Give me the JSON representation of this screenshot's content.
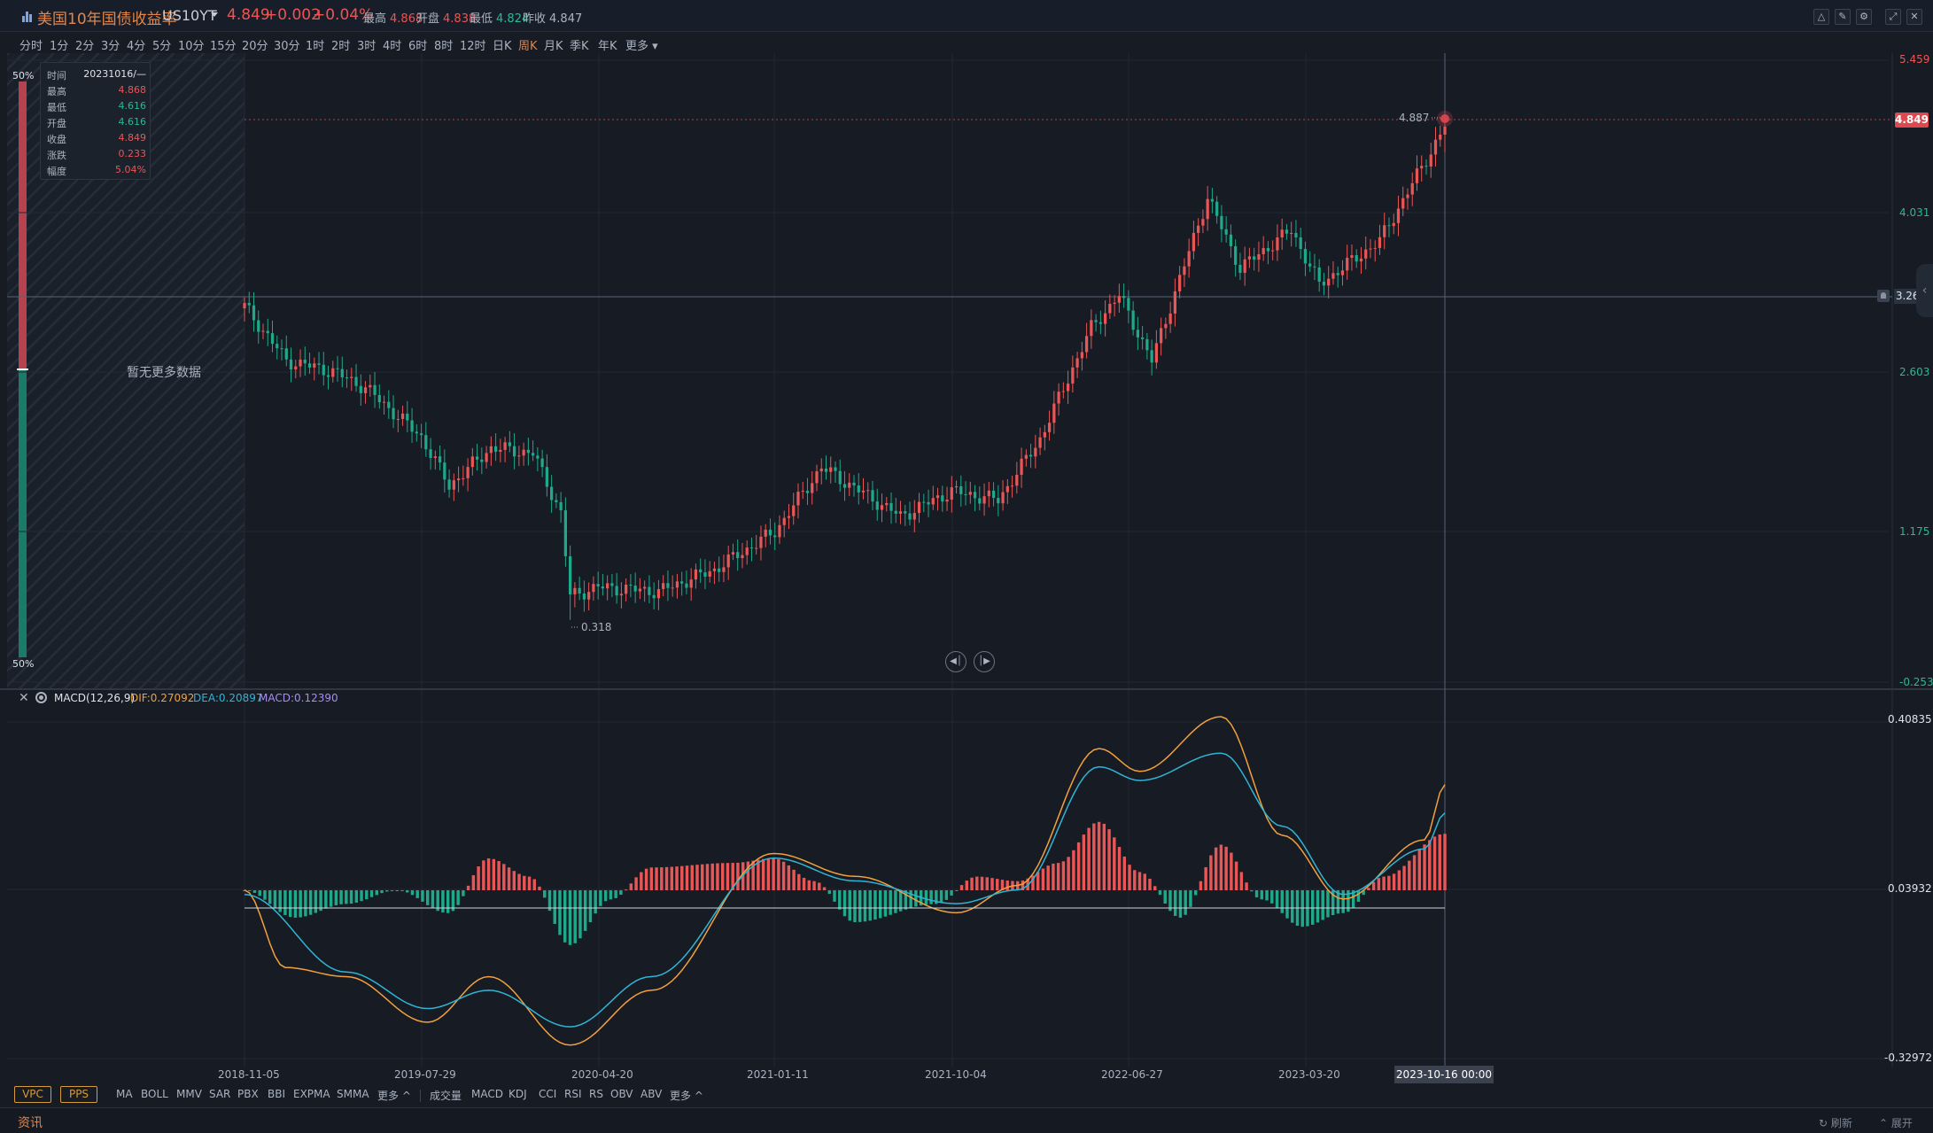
{
  "header": {
    "name": "美国10年国债收益率",
    "code": "US10YT",
    "last": "4.849",
    "change": "+0.002",
    "change_pct": "+0.04%",
    "stats": [
      {
        "label": "最高",
        "value": "4.868",
        "color": "#e85656"
      },
      {
        "label": "开盘",
        "value": "4.838",
        "color": "#e85656"
      },
      {
        "label": "最低",
        "value": "4.824",
        "color": "#29b995"
      },
      {
        "label": "昨收",
        "value": "4.847",
        "color": "#aab3c0"
      }
    ]
  },
  "periods": [
    "分时",
    "1分",
    "2分",
    "3分",
    "4分",
    "5分",
    "10分",
    "15分",
    "20分",
    "30分",
    "1时",
    "2时",
    "3时",
    "4时",
    "6时",
    "8时",
    "12时",
    "日K",
    "周K",
    "月K",
    "季K",
    "年K",
    "更多"
  ],
  "active_period": "周K",
  "tooltip": {
    "rows": [
      {
        "label": "时间",
        "value": "20231016/—",
        "color": "#dfe3ea"
      },
      {
        "label": "最高",
        "value": "4.868",
        "color": "#e85656"
      },
      {
        "label": "最低",
        "value": "4.616",
        "color": "#29b995"
      },
      {
        "label": "开盘",
        "value": "4.616",
        "color": "#29b995"
      },
      {
        "label": "收盘",
        "value": "4.849",
        "color": "#e85656"
      },
      {
        "label": "涨跌",
        "value": "0.233",
        "color": "#e85656"
      },
      {
        "label": "幅度",
        "value": "5.04%",
        "color": "#e85656"
      }
    ]
  },
  "empty_text": "暂无更多数据",
  "pct_top": "50%",
  "pct_bottom": "50%",
  "price_axis": {
    "labels": [
      "5.459",
      "4.031",
      "2.603",
      "1.175",
      "-0.253"
    ],
    "current": "4.849",
    "crosshair": "3.264"
  },
  "annotations": {
    "high": "4.887",
    "low": "0.318"
  },
  "macd": {
    "name": "MACD(12,26,9)",
    "dif": "DIF:0.27092",
    "dea": "DEA:0.20897",
    "macd": "MACD:0.12390",
    "axis": [
      "0.40835",
      "0.03932",
      "-0.32972"
    ]
  },
  "x_axis": {
    "labels": [
      "2018-11-05",
      "2019-07-29",
      "2020-04-20",
      "2021-01-11",
      "2021-10-04",
      "2022-06-27",
      "2023-03-20"
    ],
    "crosshair": "2023-10-16 00:00"
  },
  "indicators": {
    "boxed": [
      "VPC",
      "PPS"
    ],
    "main": [
      "MA",
      "BOLL",
      "MMV",
      "SAR",
      "PBX",
      "BBI",
      "EXPMA",
      "SMMA",
      "更多 ^"
    ],
    "sub": [
      "成交量",
      "MACD",
      "KDJ",
      "CCI",
      "RSI",
      "RS",
      "OBV",
      "ABV",
      "更多 ^"
    ]
  },
  "news": {
    "title": "资讯",
    "refresh": "刷新",
    "expand": "展开"
  },
  "colors": {
    "up": "#e85656",
    "down": "#1fa889",
    "dif": "#f2a03d",
    "dea": "#31b4d4",
    "accent": "#e2864a"
  },
  "icons": [
    "app-chart-icon",
    "caret-down-icon",
    "chart-type-icon",
    "draw-icon",
    "settings-icon",
    "expand-icon",
    "close-icon",
    "bell-icon",
    "gear-icon",
    "prev-icon",
    "next-icon",
    "refresh-icon",
    "expand-up-icon"
  ],
  "chart_data": [
    {
      "type": "candlestick",
      "title": "美国10年国债收益率 US10YT 周K",
      "x_range": [
        "2018-11-05",
        "2023-10-16"
      ],
      "ylim": [
        -0.253,
        5.459
      ],
      "waypoints": [
        [
          "2018-11-05",
          3.2
        ],
        [
          "2019-01-07",
          2.7
        ],
        [
          "2019-03-18",
          2.6
        ],
        [
          "2019-05-06",
          2.45
        ],
        [
          "2019-07-29",
          2.0
        ],
        [
          "2019-09-09",
          1.55
        ],
        [
          "2019-11-11",
          1.9
        ],
        [
          "2020-01-13",
          1.85
        ],
        [
          "2020-02-24",
          1.3
        ],
        [
          "2020-03-09",
          0.54
        ],
        [
          "2020-04-20",
          0.62
        ],
        [
          "2020-07-20",
          0.58
        ],
        [
          "2020-10-12",
          0.78
        ],
        [
          "2021-01-11",
          1.13
        ],
        [
          "2021-03-22",
          1.72
        ],
        [
          "2021-07-19",
          1.27
        ],
        [
          "2021-10-04",
          1.5
        ],
        [
          "2021-12-13",
          1.42
        ],
        [
          "2022-02-14",
          1.98
        ],
        [
          "2022-05-02",
          3.0
        ],
        [
          "2022-06-13",
          3.3
        ],
        [
          "2022-08-01",
          2.7
        ],
        [
          "2022-10-24",
          4.2
        ],
        [
          "2022-12-12",
          3.55
        ],
        [
          "2023-02-27",
          3.9
        ],
        [
          "2023-04-10",
          3.4
        ],
        [
          "2023-07-10",
          3.8
        ],
        [
          "2023-10-16",
          4.849
        ]
      ],
      "high": 4.887,
      "low": 0.318,
      "last": {
        "date": "2023-10-16",
        "open": 4.616,
        "high": 4.868,
        "low": 4.616,
        "close": 4.849
      }
    },
    {
      "type": "bar+line",
      "title": "MACD(12,26,9)",
      "ylim": [
        -0.32972,
        0.40835
      ],
      "series": [
        {
          "name": "DIF",
          "last": 0.27092,
          "points": [
            [
              0,
              0.04
            ],
            [
              8,
              -0.13
            ],
            [
              20,
              -0.15
            ],
            [
              36,
              -0.25
            ],
            [
              48,
              -0.15
            ],
            [
              64,
              -0.3
            ],
            [
              80,
              -0.18
            ],
            [
              104,
              0.12
            ],
            [
              120,
              0.07
            ],
            [
              140,
              -0.01
            ],
            [
              152,
              0.05
            ],
            [
              168,
              0.35
            ],
            [
              176,
              0.3
            ],
            [
              192,
              0.42
            ],
            [
              204,
              0.16
            ],
            [
              216,
              0.02
            ],
            [
              232,
              0.15
            ],
            [
              236,
              0.27092
            ]
          ]
        },
        {
          "name": "DEA",
          "last": 0.20897,
          "points": [
            [
              0,
              0.03
            ],
            [
              20,
              -0.14
            ],
            [
              36,
              -0.22
            ],
            [
              48,
              -0.18
            ],
            [
              64,
              -0.26
            ],
            [
              80,
              -0.15
            ],
            [
              104,
              0.11
            ],
            [
              120,
              0.06
            ],
            [
              140,
              0.01
            ],
            [
              152,
              0.04
            ],
            [
              168,
              0.31
            ],
            [
              176,
              0.28
            ],
            [
              192,
              0.34
            ],
            [
              204,
              0.18
            ],
            [
              216,
              0.03
            ],
            [
              232,
              0.13
            ],
            [
              236,
              0.20897
            ]
          ]
        },
        {
          "name": "MACD",
          "last": 0.1239,
          "points": [
            [
              0,
              0.0
            ],
            [
              10,
              -0.06
            ],
            [
              20,
              -0.03
            ],
            [
              30,
              0.0
            ],
            [
              40,
              -0.05
            ],
            [
              48,
              0.07
            ],
            [
              56,
              0.03
            ],
            [
              64,
              -0.12
            ],
            [
              72,
              -0.02
            ],
            [
              80,
              0.05
            ],
            [
              96,
              0.06
            ],
            [
              104,
              0.07
            ],
            [
              112,
              0.02
            ],
            [
              120,
              -0.07
            ],
            [
              136,
              -0.03
            ],
            [
              144,
              0.03
            ],
            [
              152,
              0.02
            ],
            [
              160,
              0.06
            ],
            [
              168,
              0.15
            ],
            [
              176,
              0.04
            ],
            [
              184,
              -0.06
            ],
            [
              192,
              0.1
            ],
            [
              200,
              -0.02
            ],
            [
              208,
              -0.08
            ],
            [
              216,
              -0.05
            ],
            [
              224,
              0.03
            ],
            [
              236,
              0.1239
            ]
          ]
        }
      ]
    }
  ]
}
